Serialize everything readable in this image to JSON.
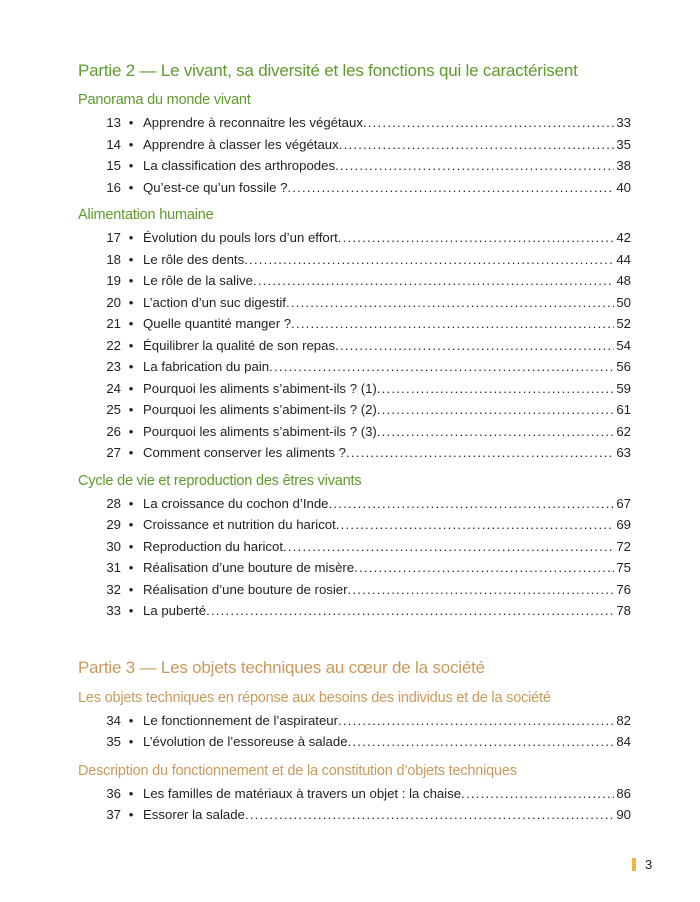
{
  "colors": {
    "part2": "#5d9b2c",
    "part3": "#c99a5b",
    "page_marker": "#f7b33c"
  },
  "parts": [
    {
      "title": "Partie 2 — Le vivant, sa diversité et les fonctions qui le caractérisent",
      "sections": [
        {
          "title": "Panorama du monde vivant",
          "entries": [
            {
              "num": "13",
              "text": "Apprendre à reconnaitre les végétaux",
              "page": "33"
            },
            {
              "num": "14",
              "text": "Apprendre à classer les végétaux",
              "page": "35"
            },
            {
              "num": "15",
              "text": "La classification des arthropodes",
              "page": "38"
            },
            {
              "num": "16",
              "text": "Qu’est-ce qu’un fossile ?",
              "page": "40"
            }
          ]
        },
        {
          "title": "Alimentation humaine",
          "entries": [
            {
              "num": "17",
              "text": "Évolution du pouls lors d’un effort",
              "page": "42"
            },
            {
              "num": "18",
              "text": "Le rôle des dents",
              "page": "44"
            },
            {
              "num": "19",
              "text": "Le rôle de la salive",
              "page": "48"
            },
            {
              "num": "20",
              "text": "L’action d’un suc digestif",
              "page": "50"
            },
            {
              "num": "21",
              "text": "Quelle quantité manger ?",
              "page": "52"
            },
            {
              "num": "22",
              "text": "Équilibrer la qualité de son repas",
              "page": "54"
            },
            {
              "num": "23",
              "text": "La fabrication du pain",
              "page": "56"
            },
            {
              "num": "24",
              "text": "Pourquoi les aliments s’abiment-ils ? (1)",
              "page": "59"
            },
            {
              "num": "25",
              "text": "Pourquoi les aliments s’abiment-ils ? (2)",
              "page": "61"
            },
            {
              "num": "26",
              "text": "Pourquoi les aliments s’abiment-ils ? (3)",
              "page": "62"
            },
            {
              "num": "27",
              "text": "Comment conserver les aliments ?",
              "page": "63"
            }
          ]
        },
        {
          "title": "Cycle de vie et reproduction des êtres vivants",
          "entries": [
            {
              "num": "28",
              "text": "La croissance du cochon d’Inde",
              "page": "67"
            },
            {
              "num": "29",
              "text": "Croissance et nutrition du haricot",
              "page": "69"
            },
            {
              "num": "30",
              "text": "Reproduction du haricot",
              "page": "72"
            },
            {
              "num": "31",
              "text": "Réalisation d’une bouture de misère",
              "page": "75"
            },
            {
              "num": "32",
              "text": "Réalisation d’une bouture de rosier",
              "page": "76"
            },
            {
              "num": "33",
              "text": "La puberté",
              "page": "78"
            }
          ]
        }
      ]
    },
    {
      "title": "Partie 3 — Les objets techniques au cœur de la société",
      "sections": [
        {
          "title": "Les objets techniques en réponse aux besoins des individus et de la société",
          "entries": [
            {
              "num": "34",
              "text": "Le fonctionnement de l’aspirateur",
              "page": "82"
            },
            {
              "num": "35",
              "text": "L’évolution de l’essoreuse à salade",
              "page": "84"
            }
          ]
        },
        {
          "title": "Description du fonctionnement et de la constitution d’objets techniques",
          "entries": [
            {
              "num": "36",
              "text": "Les familles de matériaux à travers un objet : la chaise",
              "page": "86"
            },
            {
              "num": "37",
              "text": "Essorer la salade",
              "page": "90"
            }
          ]
        }
      ]
    }
  ],
  "bullet": "•",
  "footer": {
    "page_number": "3"
  }
}
